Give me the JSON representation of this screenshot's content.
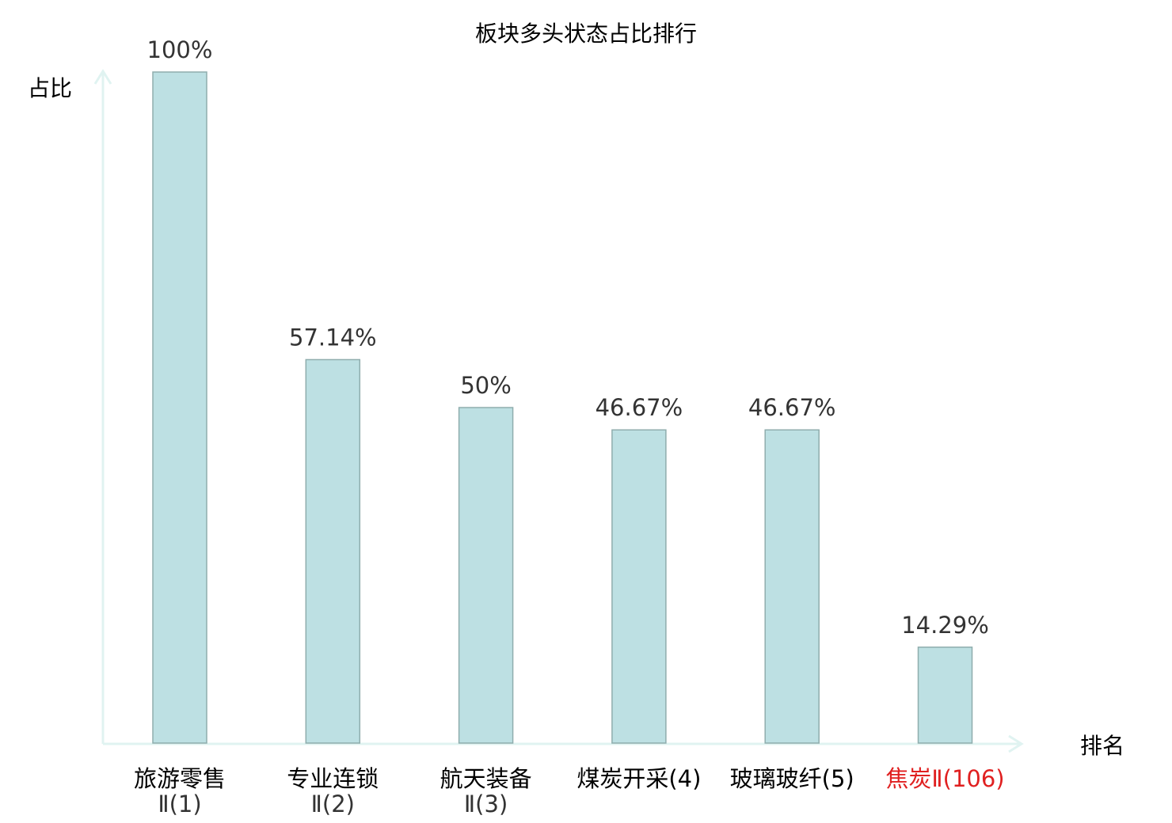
{
  "chart_data": {
    "type": "bar",
    "title": "板块多头状态占比排行",
    "ylabel": "占比",
    "xlabel": "排名",
    "ylim": [
      0,
      100
    ],
    "grid": false,
    "categories": [
      {
        "line1": "旅游零售",
        "line2": "Ⅱ(1)",
        "highlight": false
      },
      {
        "line1": "专业连锁",
        "line2": "Ⅱ(2)",
        "highlight": false
      },
      {
        "line1": "航天装备",
        "line2": "Ⅱ(3)",
        "highlight": false
      },
      {
        "line1": "煤炭开采(4)",
        "line2": "",
        "highlight": false
      },
      {
        "line1": "玻璃玻纤(5)",
        "line2": "",
        "highlight": false
      },
      {
        "line1": "焦炭Ⅱ(106)",
        "line2": "",
        "highlight": true
      }
    ],
    "values": [
      100,
      57.14,
      50,
      46.67,
      46.67,
      14.29
    ],
    "value_labels": [
      "100%",
      "57.14%",
      "50%",
      "46.67%",
      "46.67%",
      "14.29%"
    ],
    "colors": {
      "bar_fill": "#bde0e3",
      "bar_stroke": "#8fadad",
      "axis": "#e0f3f1",
      "text": "#333333",
      "highlight": "#e02020"
    }
  }
}
